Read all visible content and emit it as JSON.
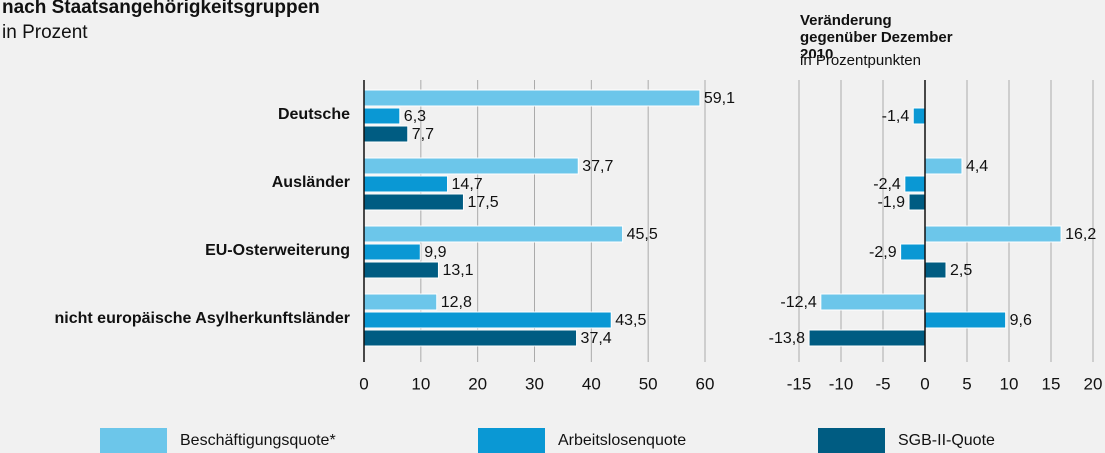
{
  "chart_data": [
    {
      "type": "bar",
      "orientation": "horizontal",
      "title": "nach Staatsangehörigkeitsgruppen",
      "subtitle": "in Prozent",
      "categories": [
        "Deutsche",
        "Ausländer",
        "EU-Osterweiterung",
        "nicht europäische Asylherkunftsländer"
      ],
      "series": [
        {
          "name": "Beschäftigungsquote*",
          "color": "#6cc6ea",
          "values": [
            59.1,
            37.7,
            45.5,
            12.8
          ],
          "value_labels": [
            "59,1",
            "37,7",
            "45,5",
            "12,8"
          ]
        },
        {
          "name": "Arbeitslosenquote",
          "color": "#0a98d4",
          "values": [
            6.3,
            14.7,
            9.9,
            43.5
          ],
          "value_labels": [
            "6,3",
            "14,7",
            "9,9",
            "43,5"
          ]
        },
        {
          "name": "SGB-II-Quote",
          "color": "#005c82",
          "values": [
            7.7,
            17.5,
            13.1,
            37.4
          ],
          "value_labels": [
            "7,7",
            "17,5",
            "13,1",
            "37,4"
          ]
        }
      ],
      "xlim": [
        0,
        60
      ],
      "xticks": [
        0,
        10,
        20,
        30,
        40,
        50,
        60
      ],
      "grid": true
    },
    {
      "type": "bar",
      "orientation": "horizontal",
      "title": "Veränderung gegenüber Dezember 2010",
      "subtitle": "in Prozentpunkten",
      "series": [
        {
          "color": "#6cc6ea",
          "values": [
            null,
            4.4,
            16.2,
            -12.4
          ],
          "value_labels": [
            null,
            "4,4",
            "16,2",
            "-12,4"
          ]
        },
        {
          "color": "#0a98d4",
          "values": [
            -1.4,
            -2.4,
            -2.9,
            9.6
          ],
          "value_labels": [
            "-1,4",
            "-2,4",
            "-2,9",
            "9,6"
          ]
        },
        {
          "color": "#005c82",
          "values": [
            null,
            -1.9,
            2.5,
            -13.8
          ],
          "value_labels": [
            null,
            "-1,9",
            "2,5",
            "-13,8"
          ]
        }
      ],
      "xlim": [
        -15,
        20
      ],
      "xticks": [
        -15,
        -10,
        -5,
        0,
        5,
        10,
        15,
        20
      ],
      "grid": true
    }
  ]
}
